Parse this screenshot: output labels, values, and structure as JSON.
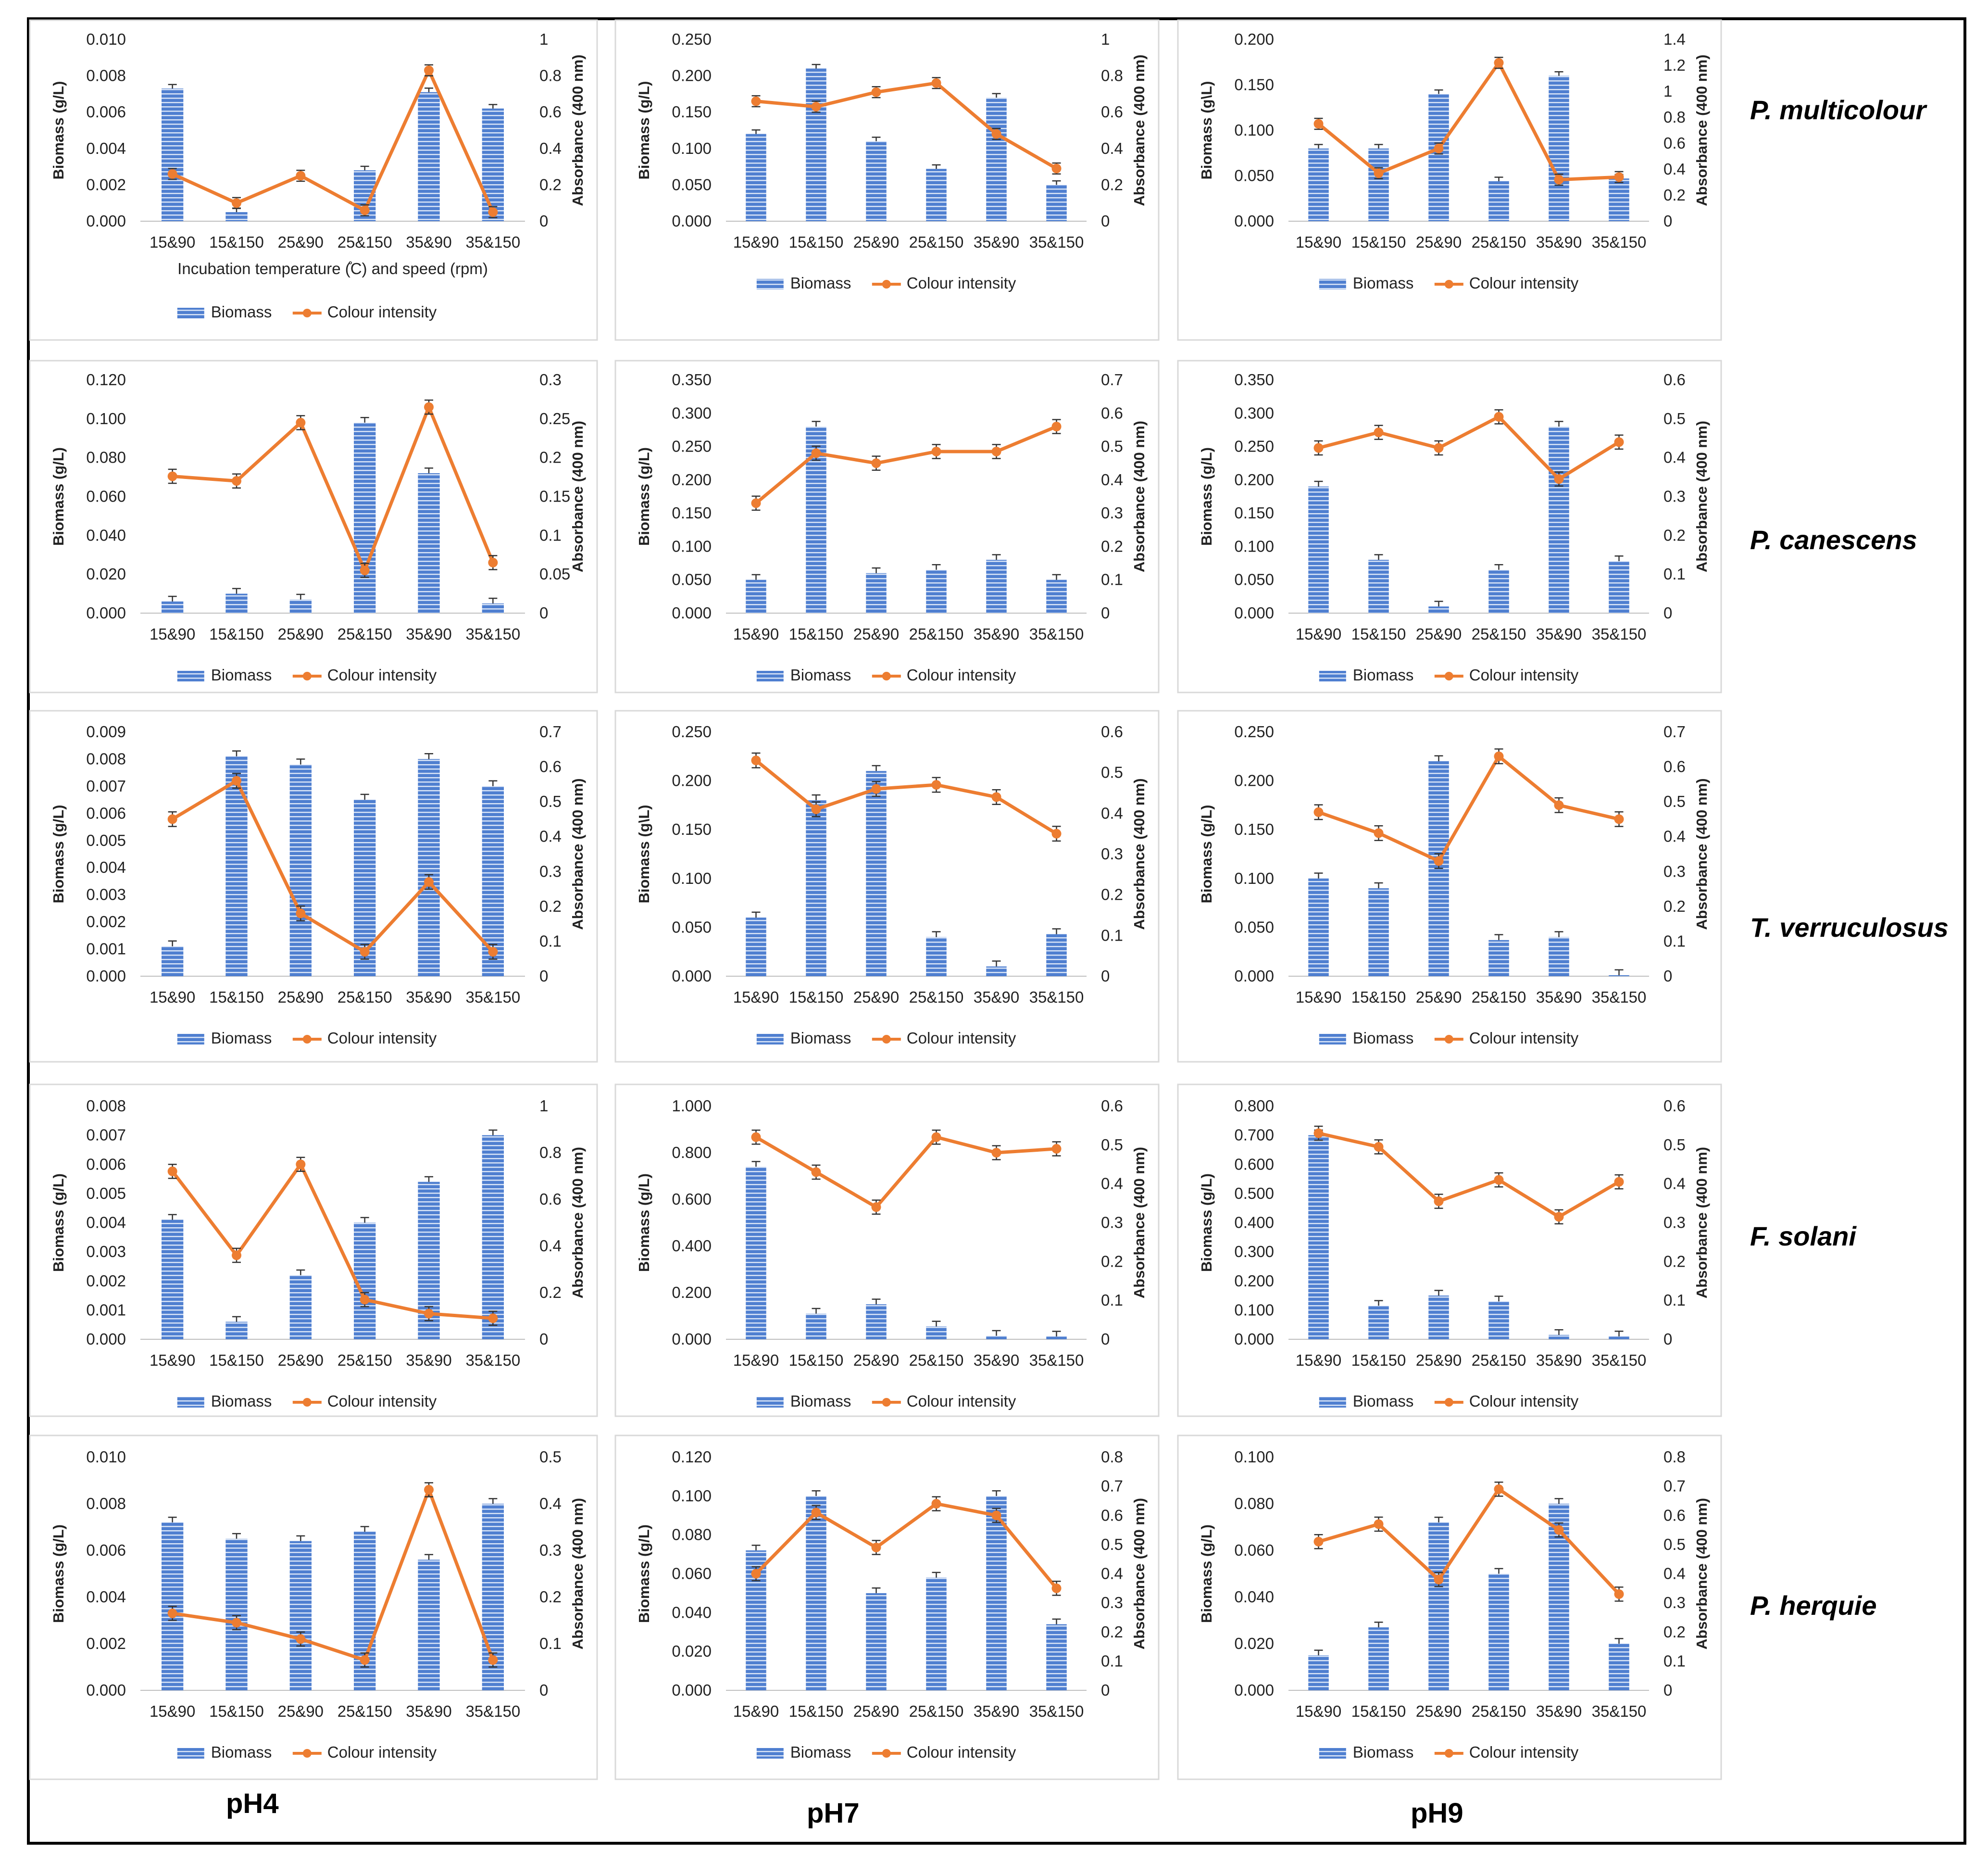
{
  "colors": {
    "bar": "#4f7fd0",
    "bar_stripe": "#dbe6f7",
    "line": "#ed7d31",
    "error": "#333333"
  },
  "legend": {
    "bar_label": "Biomass",
    "line_label": "Colour intensity"
  },
  "axis_titles": {
    "left": "Biomass (g/L)",
    "left_alt": "Biomass (g\\L)",
    "right": "Absorbance (400 nm)"
  },
  "categories": [
    "15&90",
    "15&150",
    "25&90",
    "25&150",
    "35&90",
    "35&150"
  ],
  "row_labels": [
    "P. multicolour",
    "P. canescens",
    "T. verruculosus",
    "F. solani",
    "P. herquie"
  ],
  "col_labels": [
    "pH4",
    "pH7",
    "pH9"
  ],
  "chart_data": [
    {
      "type": "bar+line",
      "species": "P. multicolour",
      "pH": "pH4",
      "xlabel": "Incubation temperature (̊C) and speed (rpm)",
      "left_axis": {
        "ticks": [
          "0.000",
          "0.002",
          "0.004",
          "0.006",
          "0.008",
          "0.010"
        ],
        "range": [
          0,
          0.01
        ]
      },
      "right_axis": {
        "ticks": [
          "0",
          "0.2",
          "0.4",
          "0.6",
          "0.8",
          "1"
        ],
        "range": [
          0,
          1
        ]
      },
      "biomass": [
        0.0073,
        0.0005,
        0,
        0.0028,
        0.0071,
        0.0062
      ],
      "colour_intensity": [
        0.26,
        0.1,
        0.25,
        0.06,
        0.83,
        0.05
      ]
    },
    {
      "type": "bar+line",
      "species": "P. multicolour",
      "pH": "pH7",
      "left_axis": {
        "ticks": [
          "0.000",
          "0.050",
          "0.100",
          "0.150",
          "0.200",
          "0.250"
        ],
        "range": [
          0,
          0.25
        ]
      },
      "right_axis": {
        "ticks": [
          "0",
          "0.2",
          "0.4",
          "0.6",
          "0.8",
          "1"
        ],
        "range": [
          0,
          1
        ]
      },
      "biomass": [
        0.12,
        0.21,
        0.11,
        0.072,
        0.17,
        0.05
      ],
      "colour_intensity": [
        0.66,
        0.63,
        0.71,
        0.76,
        0.48,
        0.29
      ]
    },
    {
      "type": "bar+line",
      "species": "P. multicolour",
      "pH": "pH9",
      "left_axis_title_variant": "alt",
      "left_axis": {
        "ticks": [
          "0.000",
          "0.050",
          "0.100",
          "0.150",
          "0.200"
        ],
        "range": [
          0,
          0.2
        ]
      },
      "right_axis": {
        "ticks": [
          "0",
          "0.2",
          "0.4",
          "0.6",
          "0.8",
          "1",
          "1.2",
          "1.4"
        ],
        "range": [
          0,
          1.4
        ]
      },
      "biomass": [
        0.08,
        0.08,
        0.14,
        0.044,
        0.16,
        0.047
      ],
      "colour_intensity": [
        0.75,
        0.37,
        0.56,
        1.22,
        0.32,
        0.34
      ]
    },
    {
      "type": "bar+line",
      "species": "P. canescens",
      "pH": "pH4",
      "left_axis": {
        "ticks": [
          "0.000",
          "0.020",
          "0.040",
          "0.060",
          "0.080",
          "0.100",
          "0.120"
        ],
        "range": [
          0,
          0.12
        ]
      },
      "right_axis": {
        "ticks": [
          "0",
          "0.05",
          "0.1",
          "0.15",
          "0.2",
          "0.25",
          "0.3"
        ],
        "range": [
          0,
          0.3
        ]
      },
      "biomass": [
        0.006,
        0.01,
        0.007,
        0.098,
        0.072,
        0.005
      ],
      "colour_intensity": [
        0.176,
        0.17,
        0.245,
        0.055,
        0.265,
        0.065
      ]
    },
    {
      "type": "bar+line",
      "species": "P. canescens",
      "pH": "pH7",
      "left_axis": {
        "ticks": [
          "0.000",
          "0.050",
          "0.100",
          "0.150",
          "0.200",
          "0.250",
          "0.300",
          "0.350"
        ],
        "range": [
          0,
          0.35
        ]
      },
      "right_axis": {
        "ticks": [
          "0",
          "0.1",
          "0.2",
          "0.3",
          "0.4",
          "0.5",
          "0.6",
          "0.7"
        ],
        "range": [
          0,
          0.7
        ]
      },
      "biomass": [
        0.05,
        0.28,
        0.06,
        0.065,
        0.08,
        0.05
      ],
      "colour_intensity": [
        0.33,
        0.48,
        0.45,
        0.485,
        0.485,
        0.56
      ]
    },
    {
      "type": "bar+line",
      "species": "P. canescens",
      "pH": "pH9",
      "left_axis": {
        "ticks": [
          "0.000",
          "0.050",
          "0.100",
          "0.150",
          "0.200",
          "0.250",
          "0.300",
          "0.350"
        ],
        "range": [
          0,
          0.35
        ]
      },
      "right_axis": {
        "ticks": [
          "0",
          "0.1",
          "0.2",
          "0.3",
          "0.4",
          "0.5",
          "0.6"
        ],
        "range": [
          0,
          0.6
        ]
      },
      "biomass": [
        0.19,
        0.08,
        0.01,
        0.065,
        0.28,
        0.078
      ],
      "colour_intensity": [
        0.425,
        0.465,
        0.425,
        0.505,
        0.345,
        0.44
      ]
    },
    {
      "type": "bar+line",
      "species": "T. verruculosus",
      "pH": "pH4",
      "left_axis": {
        "ticks": [
          "0.000",
          "0.001",
          "0.002",
          "0.003",
          "0.004",
          "0.005",
          "0.006",
          "0.007",
          "0.008",
          "0.009"
        ],
        "range": [
          0,
          0.009
        ]
      },
      "right_axis": {
        "ticks": [
          "0",
          "0.1",
          "0.2",
          "0.3",
          "0.4",
          "0.5",
          "0.6",
          "0.7"
        ],
        "range": [
          0,
          0.7
        ]
      },
      "biomass": [
        0.0011,
        0.0081,
        0.0078,
        0.0065,
        0.008,
        0.007
      ],
      "colour_intensity": [
        0.45,
        0.56,
        0.18,
        0.07,
        0.27,
        0.07
      ]
    },
    {
      "type": "bar+line",
      "species": "T. verruculosus",
      "pH": "pH7",
      "left_axis_title_variant": "alt",
      "left_axis": {
        "ticks": [
          "0.000",
          "0.050",
          "0.100",
          "0.150",
          "0.200",
          "0.250"
        ],
        "range": [
          0,
          0.25
        ]
      },
      "right_axis": {
        "ticks": [
          "0",
          "0.1",
          "0.2",
          "0.3",
          "0.4",
          "0.5",
          "0.6"
        ],
        "range": [
          0,
          0.6
        ]
      },
      "biomass": [
        0.06,
        0.18,
        0.21,
        0.04,
        0.01,
        0.043
      ],
      "colour_intensity": [
        0.53,
        0.41,
        0.46,
        0.47,
        0.44,
        0.35
      ]
    },
    {
      "type": "bar+line",
      "species": "T. verruculosus",
      "pH": "pH9",
      "left_axis": {
        "ticks": [
          "0.000",
          "0.050",
          "0.100",
          "0.150",
          "0.200",
          "0.250"
        ],
        "range": [
          0,
          0.25
        ]
      },
      "right_axis": {
        "ticks": [
          "0",
          "0.1",
          "0.2",
          "0.3",
          "0.4",
          "0.5",
          "0.6",
          "0.7"
        ],
        "range": [
          0,
          0.7
        ]
      },
      "biomass": [
        0.1,
        0.09,
        0.22,
        0.037,
        0.04,
        0.001
      ],
      "colour_intensity": [
        0.47,
        0.41,
        0.33,
        0.63,
        0.49,
        0.45
      ]
    },
    {
      "type": "bar+line",
      "species": "F. solani",
      "pH": "pH4",
      "left_axis": {
        "ticks": [
          "0.000",
          "0.001",
          "0.002",
          "0.003",
          "0.004",
          "0.005",
          "0.006",
          "0.007",
          "0.008"
        ],
        "range": [
          0,
          0.008
        ]
      },
      "right_axis": {
        "ticks": [
          "0",
          "0.2",
          "0.4",
          "0.6",
          "0.8",
          "1"
        ],
        "range": [
          0,
          1
        ]
      },
      "biomass": [
        0.0041,
        0.0006,
        0.0022,
        0.004,
        0.0054,
        0.007
      ],
      "colour_intensity": [
        0.72,
        0.36,
        0.75,
        0.17,
        0.11,
        0.09
      ]
    },
    {
      "type": "bar+line",
      "species": "F. solani",
      "pH": "pH7",
      "left_axis": {
        "ticks": [
          "0.000",
          "0.200",
          "0.400",
          "0.600",
          "0.800",
          "1.000"
        ],
        "range": [
          0,
          1
        ]
      },
      "right_axis": {
        "ticks": [
          "0",
          "0.1",
          "0.2",
          "0.3",
          "0.4",
          "0.5",
          "0.6"
        ],
        "range": [
          0,
          0.6
        ]
      },
      "biomass": [
        0.74,
        0.11,
        0.15,
        0.055,
        0.015,
        0.012
      ],
      "colour_intensity": [
        0.52,
        0.43,
        0.34,
        0.52,
        0.48,
        0.49
      ]
    },
    {
      "type": "bar+line",
      "species": "F. solani",
      "pH": "pH9",
      "left_axis": {
        "ticks": [
          "0.000",
          "0.100",
          "0.200",
          "0.300",
          "0.400",
          "0.500",
          "0.600",
          "0.700",
          "0.800"
        ],
        "range": [
          0,
          0.8
        ]
      },
      "right_axis": {
        "ticks": [
          "0",
          "0.1",
          "0.2",
          "0.3",
          "0.4",
          "0.5",
          "0.6"
        ],
        "range": [
          0,
          0.6
        ]
      },
      "biomass": [
        0.7,
        0.115,
        0.15,
        0.13,
        0.015,
        0.01
      ],
      "colour_intensity": [
        0.53,
        0.495,
        0.355,
        0.41,
        0.315,
        0.405
      ]
    },
    {
      "type": "bar+line",
      "species": "P. herquie",
      "pH": "pH4",
      "left_axis": {
        "ticks": [
          "0.000",
          "0.002",
          "0.004",
          "0.006",
          "0.008",
          "0.010"
        ],
        "range": [
          0,
          0.01
        ]
      },
      "right_axis": {
        "ticks": [
          "0",
          "0.1",
          "0.2",
          "0.3",
          "0.4",
          "0.5"
        ],
        "range": [
          0,
          0.5
        ]
      },
      "biomass": [
        0.0072,
        0.0065,
        0.0064,
        0.0068,
        0.0056,
        0.008
      ],
      "colour_intensity": [
        0.165,
        0.145,
        0.11,
        0.065,
        0.43,
        0.065
      ]
    },
    {
      "type": "bar+line",
      "species": "P. herquie",
      "pH": "pH7",
      "left_axis": {
        "ticks": [
          "0.000",
          "0.020",
          "0.040",
          "0.060",
          "0.080",
          "0.100",
          "0.120"
        ],
        "range": [
          0,
          0.12
        ]
      },
      "right_axis": {
        "ticks": [
          "0",
          "0.1",
          "0.2",
          "0.3",
          "0.4",
          "0.5",
          "0.6",
          "0.7",
          "0.8"
        ],
        "range": [
          0,
          0.8
        ]
      },
      "biomass": [
        0.072,
        0.1,
        0.05,
        0.058,
        0.1,
        0.034
      ],
      "colour_intensity": [
        0.4,
        0.61,
        0.49,
        0.64,
        0.6,
        0.35
      ]
    },
    {
      "type": "bar+line",
      "species": "P. herquie",
      "pH": "pH9",
      "left_axis": {
        "ticks": [
          "0.000",
          "0.020",
          "0.040",
          "0.060",
          "0.080",
          "0.100"
        ],
        "range": [
          0,
          0.1
        ]
      },
      "right_axis": {
        "ticks": [
          "0",
          "0.1",
          "0.2",
          "0.3",
          "0.4",
          "0.5",
          "0.6",
          "0.7",
          "0.8"
        ],
        "range": [
          0,
          0.8
        ]
      },
      "biomass": [
        0.015,
        0.027,
        0.072,
        0.05,
        0.08,
        0.02
      ],
      "colour_intensity": [
        0.51,
        0.57,
        0.38,
        0.69,
        0.55,
        0.33
      ]
    }
  ]
}
